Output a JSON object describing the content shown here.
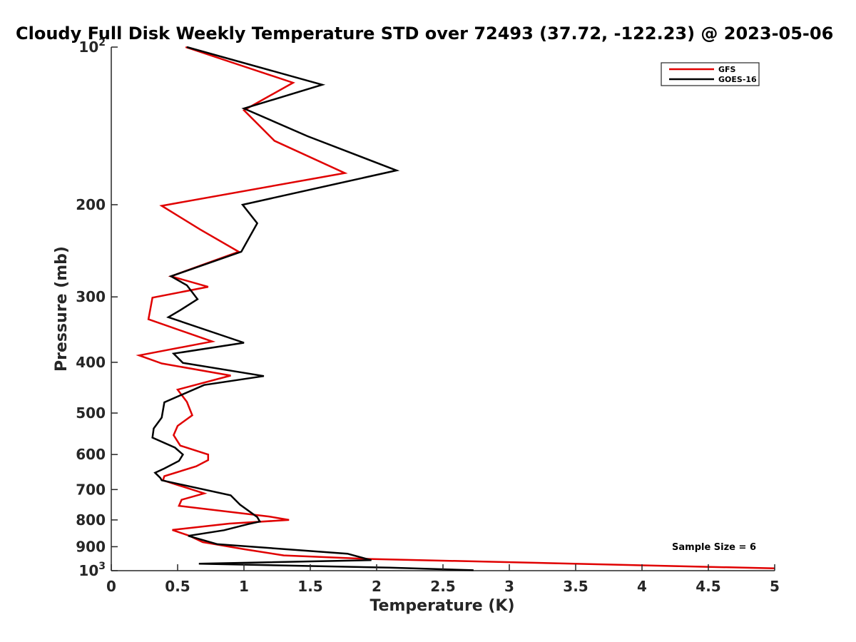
{
  "chart_data": {
    "type": "line",
    "title": "Cloudy Full Disk Weekly Temperature STD over 72493 (37.72, -122.23) @ 2023-05-06",
    "xlabel": "Temperature (K)",
    "ylabel": "Pressure (mb)",
    "xlim": [
      0,
      5
    ],
    "ylim": [
      100,
      1000
    ],
    "y_scale": "log",
    "y_reversed": true,
    "x_ticks": [
      "0",
      "0.5",
      "1",
      "1.5",
      "2",
      "2.5",
      "3",
      "3.5",
      "4",
      "4.5",
      "5"
    ],
    "y_ticks": [
      {
        "value": 100,
        "base": "10",
        "exp": "2"
      },
      {
        "value": 200,
        "label": "200"
      },
      {
        "value": 300,
        "label": "300"
      },
      {
        "value": 400,
        "label": "400"
      },
      {
        "value": 500,
        "label": "500"
      },
      {
        "value": 600,
        "label": "600"
      },
      {
        "value": 700,
        "label": "700"
      },
      {
        "value": 800,
        "label": "800"
      },
      {
        "value": 900,
        "label": "900"
      },
      {
        "value": 1000,
        "base": "10",
        "exp": "3"
      }
    ],
    "grid": false,
    "legend_position": "top-right",
    "annotation": "Sample Size = 6",
    "series": [
      {
        "name": "GFS",
        "color": "#e00000",
        "points": [
          [
            0.56,
            100
          ],
          [
            1.37,
            117
          ],
          [
            1.0,
            132
          ],
          [
            1.23,
            151
          ],
          [
            1.76,
            174
          ],
          [
            0.38,
            201
          ],
          [
            0.67,
            223
          ],
          [
            0.96,
            246
          ],
          [
            0.45,
            274
          ],
          [
            0.73,
            287
          ],
          [
            0.31,
            301
          ],
          [
            0.28,
            331
          ],
          [
            0.76,
            365
          ],
          [
            0.21,
            388
          ],
          [
            0.38,
            402
          ],
          [
            0.9,
            424
          ],
          [
            0.5,
            451
          ],
          [
            0.57,
            476
          ],
          [
            0.61,
            505
          ],
          [
            0.5,
            529
          ],
          [
            0.47,
            551
          ],
          [
            0.52,
            577
          ],
          [
            0.73,
            600
          ],
          [
            0.73,
            615
          ],
          [
            0.64,
            632
          ],
          [
            0.4,
            660
          ],
          [
            0.39,
            672
          ],
          [
            0.5,
            686
          ],
          [
            0.7,
            712
          ],
          [
            0.53,
            732
          ],
          [
            0.51,
            752
          ],
          [
            1.19,
            788
          ],
          [
            1.34,
            800
          ],
          [
            0.89,
            813
          ],
          [
            0.46,
            836
          ],
          [
            0.59,
            858
          ],
          [
            0.69,
            882
          ],
          [
            1.0,
            910
          ],
          [
            1.3,
            935
          ],
          [
            1.95,
            950
          ],
          [
            5.0,
            990
          ]
        ]
      },
      {
        "name": "GOES-16",
        "color": "#000000",
        "points": [
          [
            0.57,
            100
          ],
          [
            1.59,
            118
          ],
          [
            1.0,
            131
          ],
          [
            1.48,
            148
          ],
          [
            2.15,
            172
          ],
          [
            0.99,
            200
          ],
          [
            1.1,
            217
          ],
          [
            0.98,
            246
          ],
          [
            0.45,
            274
          ],
          [
            0.57,
            285
          ],
          [
            0.65,
            303
          ],
          [
            0.52,
            318
          ],
          [
            0.43,
            328
          ],
          [
            1.0,
            367
          ],
          [
            0.47,
            385
          ],
          [
            0.54,
            401
          ],
          [
            1.15,
            425
          ],
          [
            0.7,
            442
          ],
          [
            0.4,
            477
          ],
          [
            0.38,
            510
          ],
          [
            0.32,
            535
          ],
          [
            0.31,
            557
          ],
          [
            0.48,
            582
          ],
          [
            0.54,
            600
          ],
          [
            0.51,
            617
          ],
          [
            0.4,
            638
          ],
          [
            0.33,
            650
          ],
          [
            0.37,
            665
          ],
          [
            0.38,
            672
          ],
          [
            0.9,
            718
          ],
          [
            0.97,
            748
          ],
          [
            1.1,
            790
          ],
          [
            1.12,
            806
          ],
          [
            1.03,
            815
          ],
          [
            0.85,
            837
          ],
          [
            0.58,
            858
          ],
          [
            0.8,
            890
          ],
          [
            1.78,
            928
          ],
          [
            1.96,
            955
          ],
          [
            0.66,
            970
          ],
          [
            2.1,
            987
          ],
          [
            2.73,
            998
          ]
        ]
      }
    ]
  }
}
